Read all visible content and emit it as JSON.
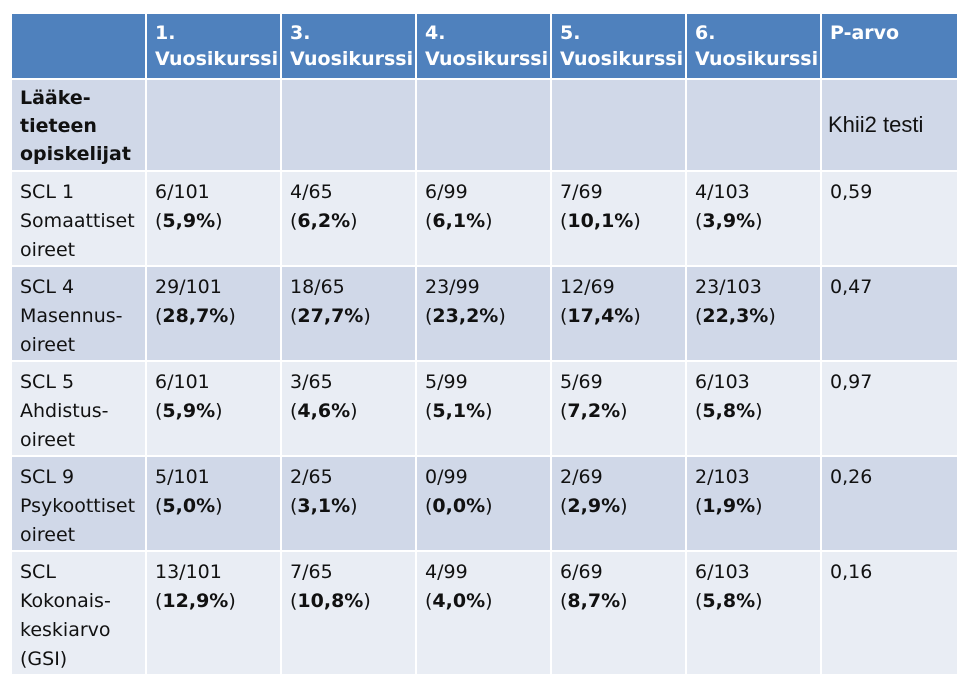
{
  "columns": [
    "",
    "1.\nVuosikurssi",
    "3.\nVuosikurssi",
    "4.\nVuosikurssi",
    "5.\nVuosikurssi",
    "6.\nVuosikurssi",
    "P-arvo"
  ],
  "column_headers": [
    {
      "line1": "1.",
      "line2": "Vuosikurssi"
    },
    {
      "line1": "3.",
      "line2": "Vuosikurssi"
    },
    {
      "line1": "4.",
      "line2": "Vuosikurssi"
    },
    {
      "line1": "5.",
      "line2": "Vuosikurssi"
    },
    {
      "line1": "6.",
      "line2": "Vuosikurssi"
    },
    {
      "line1": "P-arvo",
      "line2": ""
    }
  ],
  "group_row": {
    "label_lines": [
      "Lääke-",
      "tieteen",
      "opiskelijat"
    ],
    "test_note": "Khii2 testi"
  },
  "rows": [
    {
      "label_lines": [
        "SCL 1",
        "Somaattiset",
        "oireet"
      ],
      "cells": [
        {
          "count": "6/101",
          "pct": "5,9%"
        },
        {
          "count": "4/65",
          "pct": "6,2%"
        },
        {
          "count": "6/99",
          "pct": "6,1%"
        },
        {
          "count": "7/69",
          "pct": "10,1%"
        },
        {
          "count": "4/103",
          "pct": "3,9%"
        }
      ],
      "p_value": "0,59"
    },
    {
      "label_lines": [
        "SCL 4",
        "Masennus-",
        "oireet"
      ],
      "cells": [
        {
          "count": "29/101",
          "pct": "28,7%"
        },
        {
          "count": "18/65",
          "pct": "27,7%"
        },
        {
          "count": "23/99",
          "pct": "23,2%"
        },
        {
          "count": "12/69",
          "pct": "17,4%"
        },
        {
          "count": "23/103",
          "pct": "22,3%"
        }
      ],
      "p_value": "0,47"
    },
    {
      "label_lines": [
        "SCL 5",
        "Ahdistus-",
        "oireet"
      ],
      "cells": [
        {
          "count": "6/101",
          "pct": "5,9%"
        },
        {
          "count": "3/65",
          "pct": "4,6%"
        },
        {
          "count": "5/99",
          "pct": "5,1%"
        },
        {
          "count": "5/69",
          "pct": "7,2%"
        },
        {
          "count": "6/103",
          "pct": "5,8%"
        }
      ],
      "p_value": "0,97"
    },
    {
      "label_lines": [
        "SCL 9",
        "Psykoottiset",
        "oireet"
      ],
      "cells": [
        {
          "count": "5/101",
          "pct": "5,0%"
        },
        {
          "count": "2/65",
          "pct": "3,1%"
        },
        {
          "count": "0/99",
          "pct": "0,0%"
        },
        {
          "count": "2/69",
          "pct": "2,9%"
        },
        {
          "count": "2/103",
          "pct": "1,9%"
        }
      ],
      "p_value": "0,26"
    },
    {
      "label_lines": [
        "SCL",
        "Kokonais-",
        "keskiarvo",
        "(GSI)"
      ],
      "cells": [
        {
          "count": "13/101",
          "pct": "12,9%"
        },
        {
          "count": "7/65",
          "pct": "10,8%"
        },
        {
          "count": "4/99",
          "pct": "4,0%"
        },
        {
          "count": "6/69",
          "pct": "8,7%"
        },
        {
          "count": "6/103",
          "pct": "5,8%"
        }
      ],
      "p_value": "0,16"
    }
  ],
  "colors": {
    "header": "#4f81bd",
    "row_dark": "#d0d8e8",
    "row_light": "#e9edf4"
  }
}
